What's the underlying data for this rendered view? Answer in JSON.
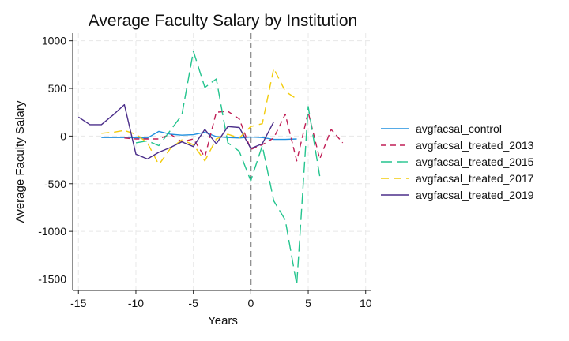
{
  "chart_data": {
    "type": "line",
    "title": "Average Faculty Salary by Institution",
    "xlabel": "Years",
    "ylabel": "Average Faculty Salary",
    "xlim": [
      -15.5,
      10.5
    ],
    "ylim": [
      -1620,
      1080
    ],
    "xticks": [
      -15,
      -10,
      -5,
      0,
      5,
      10
    ],
    "xtick_labels": [
      "-15",
      "-10",
      "-5",
      "0",
      "5",
      "10"
    ],
    "yticks": [
      1000,
      500,
      0,
      -500,
      -1000,
      -1500
    ],
    "ytick_labels": [
      "1000",
      "500",
      "0",
      "-500",
      "-1000",
      "-1500"
    ],
    "grid": true,
    "legend_position": "right",
    "reference_line": {
      "x": 0,
      "style": "dashed",
      "color": "#111111"
    },
    "series": [
      {
        "name": "avgfacsal_control",
        "color": "#1f8fdf",
        "dash": "solid",
        "x": [
          -13,
          -12,
          -11,
          -10,
          -9,
          -8,
          -7,
          -6,
          -5,
          -4,
          -3,
          -2,
          -1,
          0,
          1,
          2,
          3,
          4
        ],
        "y": [
          -15,
          -15,
          -15,
          -18,
          -20,
          50,
          20,
          10,
          15,
          40,
          -5,
          -15,
          -20,
          -10,
          -15,
          -35,
          -35,
          -30
        ]
      },
      {
        "name": "avgfacsal_treated_2013",
        "color": "#c01f56",
        "dash": "7,5",
        "x": [
          -11,
          -10,
          -9,
          -8,
          -7,
          -6,
          -5,
          -4,
          -3,
          -2,
          -1,
          0,
          1,
          2,
          3,
          4,
          5,
          6,
          7,
          8
        ],
        "y": [
          -20,
          -30,
          -30,
          -30,
          20,
          -60,
          -30,
          -220,
          250,
          260,
          180,
          -140,
          -90,
          -20,
          230,
          -260,
          250,
          -240,
          70,
          -70
        ]
      },
      {
        "name": "avgfacsal_treated_2015",
        "color": "#24c48e",
        "dash": "14,6",
        "x": [
          -10,
          -9,
          -8,
          -7,
          -6,
          -5,
          -4,
          -3,
          -2,
          -1,
          0,
          1,
          2,
          3,
          4,
          5,
          6
        ],
        "y": [
          -70,
          -50,
          -100,
          60,
          220,
          890,
          510,
          600,
          -70,
          -160,
          -470,
          -100,
          -680,
          -880,
          -1560,
          310,
          -420
        ]
      },
      {
        "name": "avgfacsal_treated_2017",
        "color": "#f2cc0c",
        "dash": "10,6",
        "x": [
          -13,
          -12,
          -11,
          -10,
          -9,
          -8,
          -7,
          -6,
          -5,
          -4,
          -3,
          -2,
          -1,
          0,
          1,
          2,
          3,
          4
        ],
        "y": [
          30,
          40,
          60,
          20,
          -70,
          -300,
          -130,
          -40,
          -90,
          -260,
          -30,
          20,
          -20,
          100,
          130,
          710,
          470,
          390
        ]
      },
      {
        "name": "avgfacsal_treated_2019",
        "color": "#4b2e8a",
        "dash": "solid",
        "x": [
          -15,
          -14,
          -13,
          -12,
          -11,
          -10,
          -9,
          -8,
          -7,
          -6,
          -5,
          -4,
          -3,
          -2,
          -1,
          0,
          1,
          2
        ],
        "y": [
          200,
          120,
          120,
          220,
          330,
          -190,
          -240,
          -170,
          -120,
          -60,
          -110,
          70,
          -80,
          100,
          90,
          -130,
          -80,
          150
        ]
      }
    ]
  }
}
